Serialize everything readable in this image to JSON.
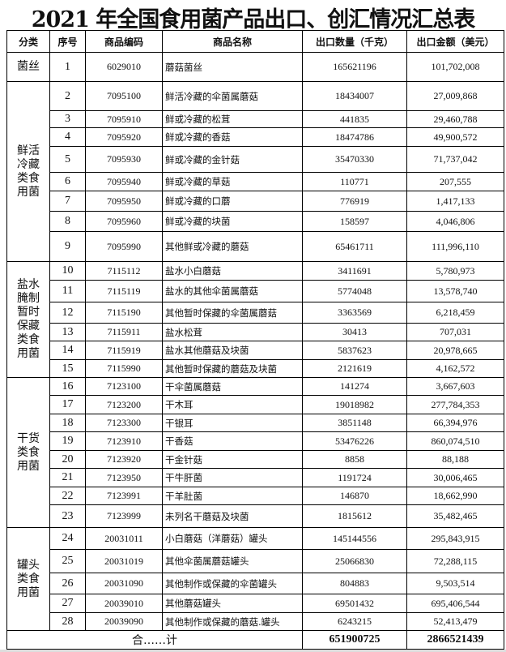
{
  "title": "2021 年全国食用菌产品出口、创汇情况汇总表",
  "headers": [
    "分类",
    "序号",
    "商品编码",
    "商品名称",
    "出口数量（千克）",
    "出口金额（美元）"
  ],
  "groups": [
    {
      "category": "菌丝",
      "rows": [
        [
          "1",
          "6029010",
          "蘑菇菌丝",
          "165621196",
          "101,702,008"
        ]
      ]
    },
    {
      "category": "鲜活冷藏类食用菌",
      "rows": [
        [
          "2",
          "7095100",
          "鲜活冷藏的伞菌属蘑菇",
          "18434007",
          "27,009,868"
        ],
        [
          "3",
          "7095910",
          "鲜或冷藏的松茸",
          "441835",
          "29,460,788"
        ],
        [
          "4",
          "7095920",
          "鲜或冷藏的香菇",
          "18474786",
          "49,900,572"
        ],
        [
          "5",
          "7095930",
          "鲜或冷藏的金针菇",
          "35470330",
          "71,737,042"
        ],
        [
          "6",
          "7095940",
          "鲜或冷藏的草菇",
          "110771",
          "207,555"
        ],
        [
          "7",
          "7095950",
          "鲜或冷藏的口蘑",
          "776919",
          "1,417,133"
        ],
        [
          "8",
          "7095960",
          "鲜或冷藏的块菌",
          "158597",
          "4,046,806"
        ],
        [
          "9",
          "7095990",
          "其他鲜或冷藏的蘑菇",
          "65461711",
          "111,996,110"
        ]
      ]
    },
    {
      "category": "盐水腌制暂时保藏类食用菌",
      "rows": [
        [
          "10",
          "7115112",
          "盐水小白蘑菇",
          "3411691",
          "5,780,973"
        ],
        [
          "11",
          "7115119",
          "盐水的其他伞菌属蘑菇",
          "5774048",
          "13,578,740"
        ],
        [
          "12",
          "7115190",
          "其他暂时保藏的伞菌属蘑菇",
          "3363569",
          "6,218,459"
        ],
        [
          "13",
          "7115911",
          "盐水松茸",
          "30413",
          "707,031"
        ],
        [
          "14",
          "7115919",
          "盐水其他蘑菇及块菌",
          "5837623",
          "20,978,665"
        ],
        [
          "15",
          "7115990",
          "其他暂时保藏的蘑菇及块菌",
          "2121619",
          "4,162,572"
        ]
      ]
    },
    {
      "category": "干货类食用菌",
      "rows": [
        [
          "16",
          "7123100",
          "干伞菌属蘑菇",
          "141274",
          "3,667,603"
        ],
        [
          "17",
          "7123200",
          "干木耳",
          "19018982",
          "277,784,353"
        ],
        [
          "18",
          "7123300",
          "干银耳",
          "3851148",
          "66,394,976"
        ],
        [
          "19",
          "7123910",
          "干香菇",
          "53476226",
          "860,074,510"
        ],
        [
          "20",
          "7123920",
          "干金针菇",
          "8858",
          "88,188"
        ],
        [
          "21",
          "7123950",
          "干牛肝菌",
          "1191724",
          "30,006,465"
        ],
        [
          "22",
          "7123991",
          "干羊肚菌",
          "146870",
          "18,662,990"
        ],
        [
          "23",
          "7123999",
          "未列名干蘑菇及块菌",
          "1815612",
          "35,482,465"
        ]
      ]
    },
    {
      "category": "罐头类食用菌",
      "rows": [
        [
          "24",
          "20031011",
          "小白蘑菇（洋蘑菇）罐头",
          "145144556",
          "295,843,915"
        ],
        [
          "25",
          "20031019",
          "其他伞菌属蘑菇罐头",
          "25066830",
          "72,288,115"
        ],
        [
          "26",
          "20031090",
          "其他制作或保藏的伞菌罐头",
          "804883",
          "9,503,514"
        ],
        [
          "27",
          "20039010",
          "其他蘑菇罐头",
          "69501432",
          "695,406,544"
        ],
        [
          "28",
          "20039090",
          "其他制作或保藏的蘑菇.罐头",
          "6243215",
          "52,413,479"
        ]
      ]
    }
  ],
  "total": {
    "label": "合……计",
    "quantity": "651900725",
    "amount": "2866521439"
  }
}
